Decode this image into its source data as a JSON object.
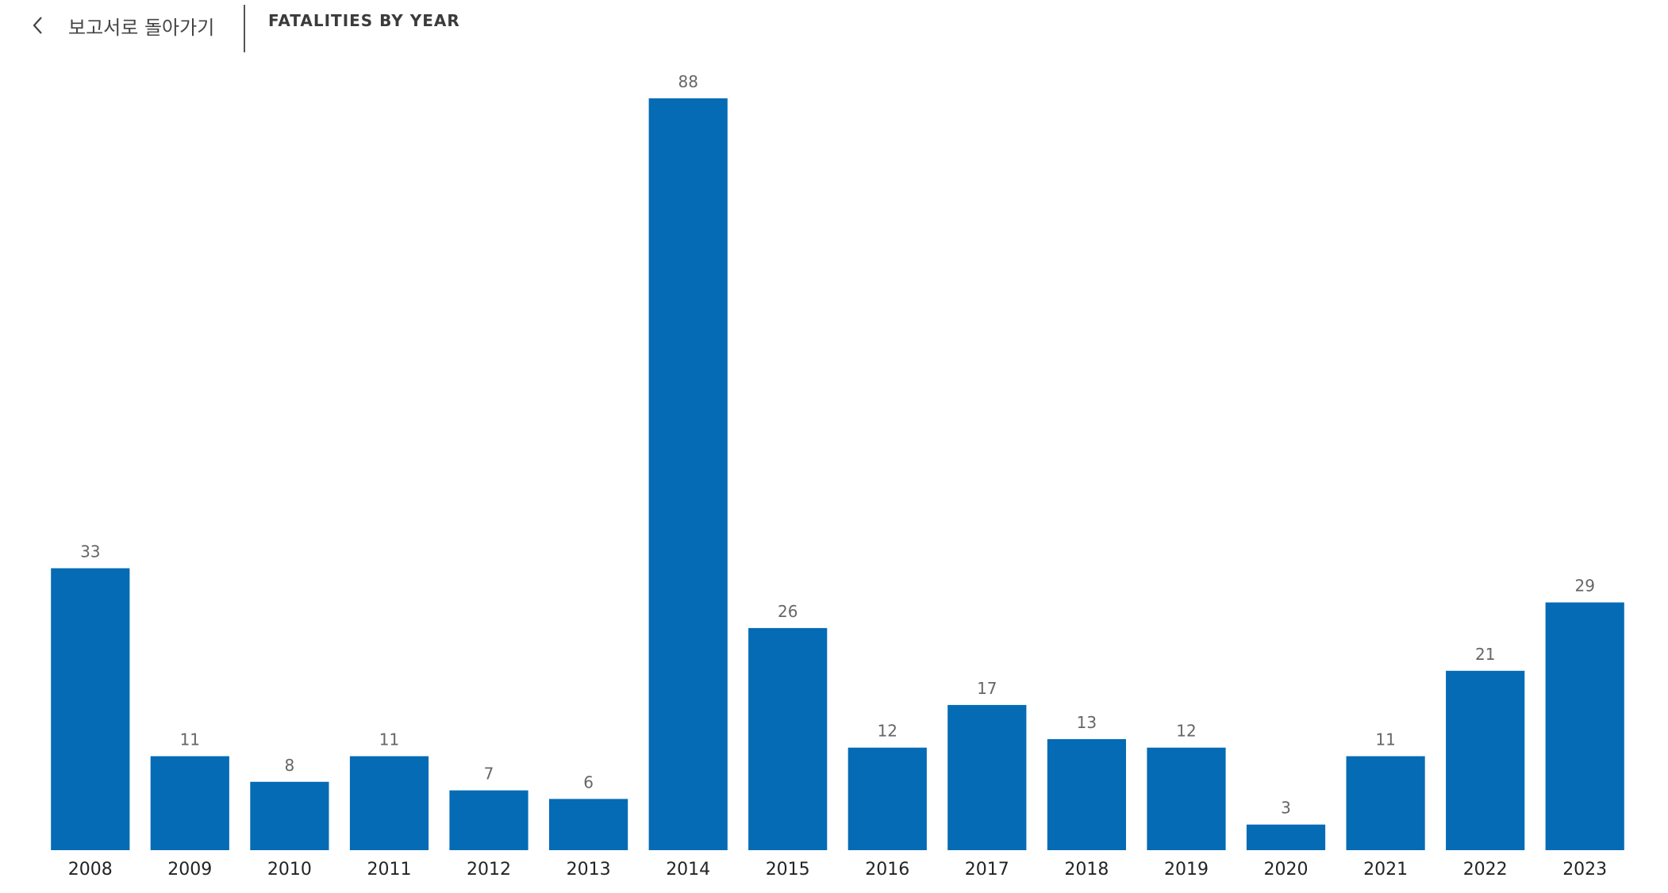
{
  "header": {
    "back_label": "보고서로 돌아가기",
    "back_icon": "chevron-left-icon"
  },
  "colors": {
    "bar": "#056BB5",
    "data_label": "#666666",
    "tick_label": "#252423"
  },
  "chart_data": {
    "type": "bar",
    "title": "FATALITIES BY YEAR",
    "xlabel": "",
    "ylabel": "",
    "categories": [
      "2008",
      "2009",
      "2010",
      "2011",
      "2012",
      "2013",
      "2014",
      "2015",
      "2016",
      "2017",
      "2018",
      "2019",
      "2020",
      "2021",
      "2022",
      "2023"
    ],
    "values": [
      33,
      11,
      8,
      11,
      7,
      6,
      88,
      26,
      12,
      17,
      13,
      12,
      3,
      11,
      21,
      29
    ],
    "ylim": [
      0,
      88
    ],
    "grid": false,
    "legend": "none",
    "data_labels": true
  }
}
